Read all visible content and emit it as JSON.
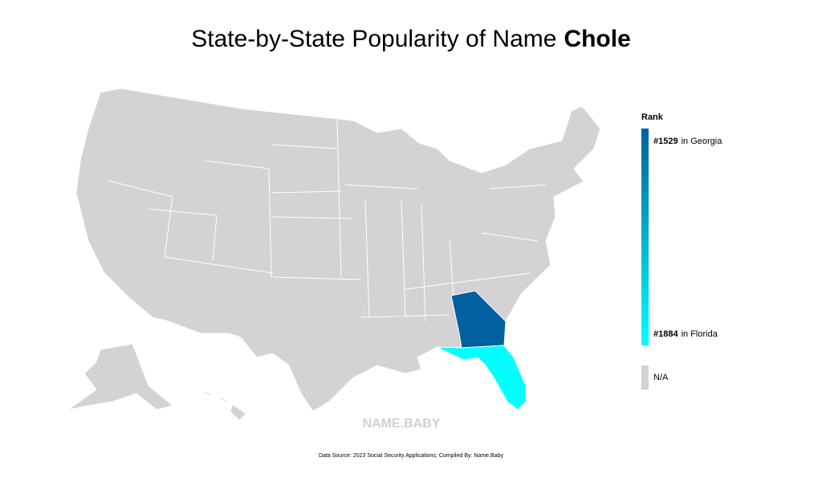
{
  "header": {
    "title": "State-by-State Popularity of Name",
    "name": "Chole"
  },
  "legend": {
    "title": "Rank",
    "top": {
      "rank": "#1529",
      "state": "in Georgia",
      "color": "#0060a0"
    },
    "bottom": {
      "rank": "#1884",
      "state": "in Florida",
      "color": "#00ffff"
    },
    "na": {
      "label": "N/A",
      "color": "#d3d3d3"
    }
  },
  "watermark": "NAME.BABY",
  "footer": "Data Source: 2023 Social Security Applications; Compiled By: Name.Baby"
}
